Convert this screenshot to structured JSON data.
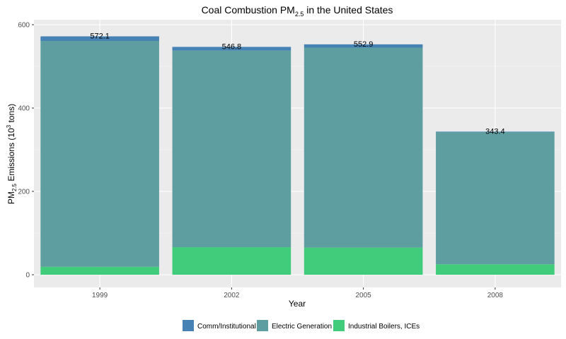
{
  "chart_data": {
    "type": "bar",
    "stacked": true,
    "title": "Coal Combustion PM",
    "title_sub": "2.5",
    "title_suffix": " in the United States",
    "xlabel": "Year",
    "ylabel_prefix": "PM",
    "ylabel_sub": "2.5",
    "ylabel_mid": " Emissions (10",
    "ylabel_sup": "3",
    "ylabel_suffix": " tons)",
    "categories": [
      "1999",
      "2002",
      "2005",
      "2008"
    ],
    "ylim": [
      0,
      600
    ],
    "y_ticks": [
      0,
      200,
      400,
      600
    ],
    "grid": true,
    "legend_position": "bottom",
    "series": [
      {
        "name": "Industrial Boilers, ICEs",
        "color": "#41cc7c",
        "values": [
          19,
          66,
          65,
          25
        ]
      },
      {
        "name": "Electric Generation",
        "color": "#5f9ea0",
        "values": [
          542,
          471.8,
          479.9,
          317.4
        ]
      },
      {
        "name": "Comm/Institutional",
        "color": "#4682b4",
        "values": [
          11.1,
          9,
          8,
          1
        ]
      }
    ],
    "legend_order": [
      "Comm/Institutional",
      "Electric Generation",
      "Industrial Boilers, ICEs"
    ],
    "totals": [
      "572.1",
      "546.8",
      "552.9",
      "343.4"
    ]
  }
}
